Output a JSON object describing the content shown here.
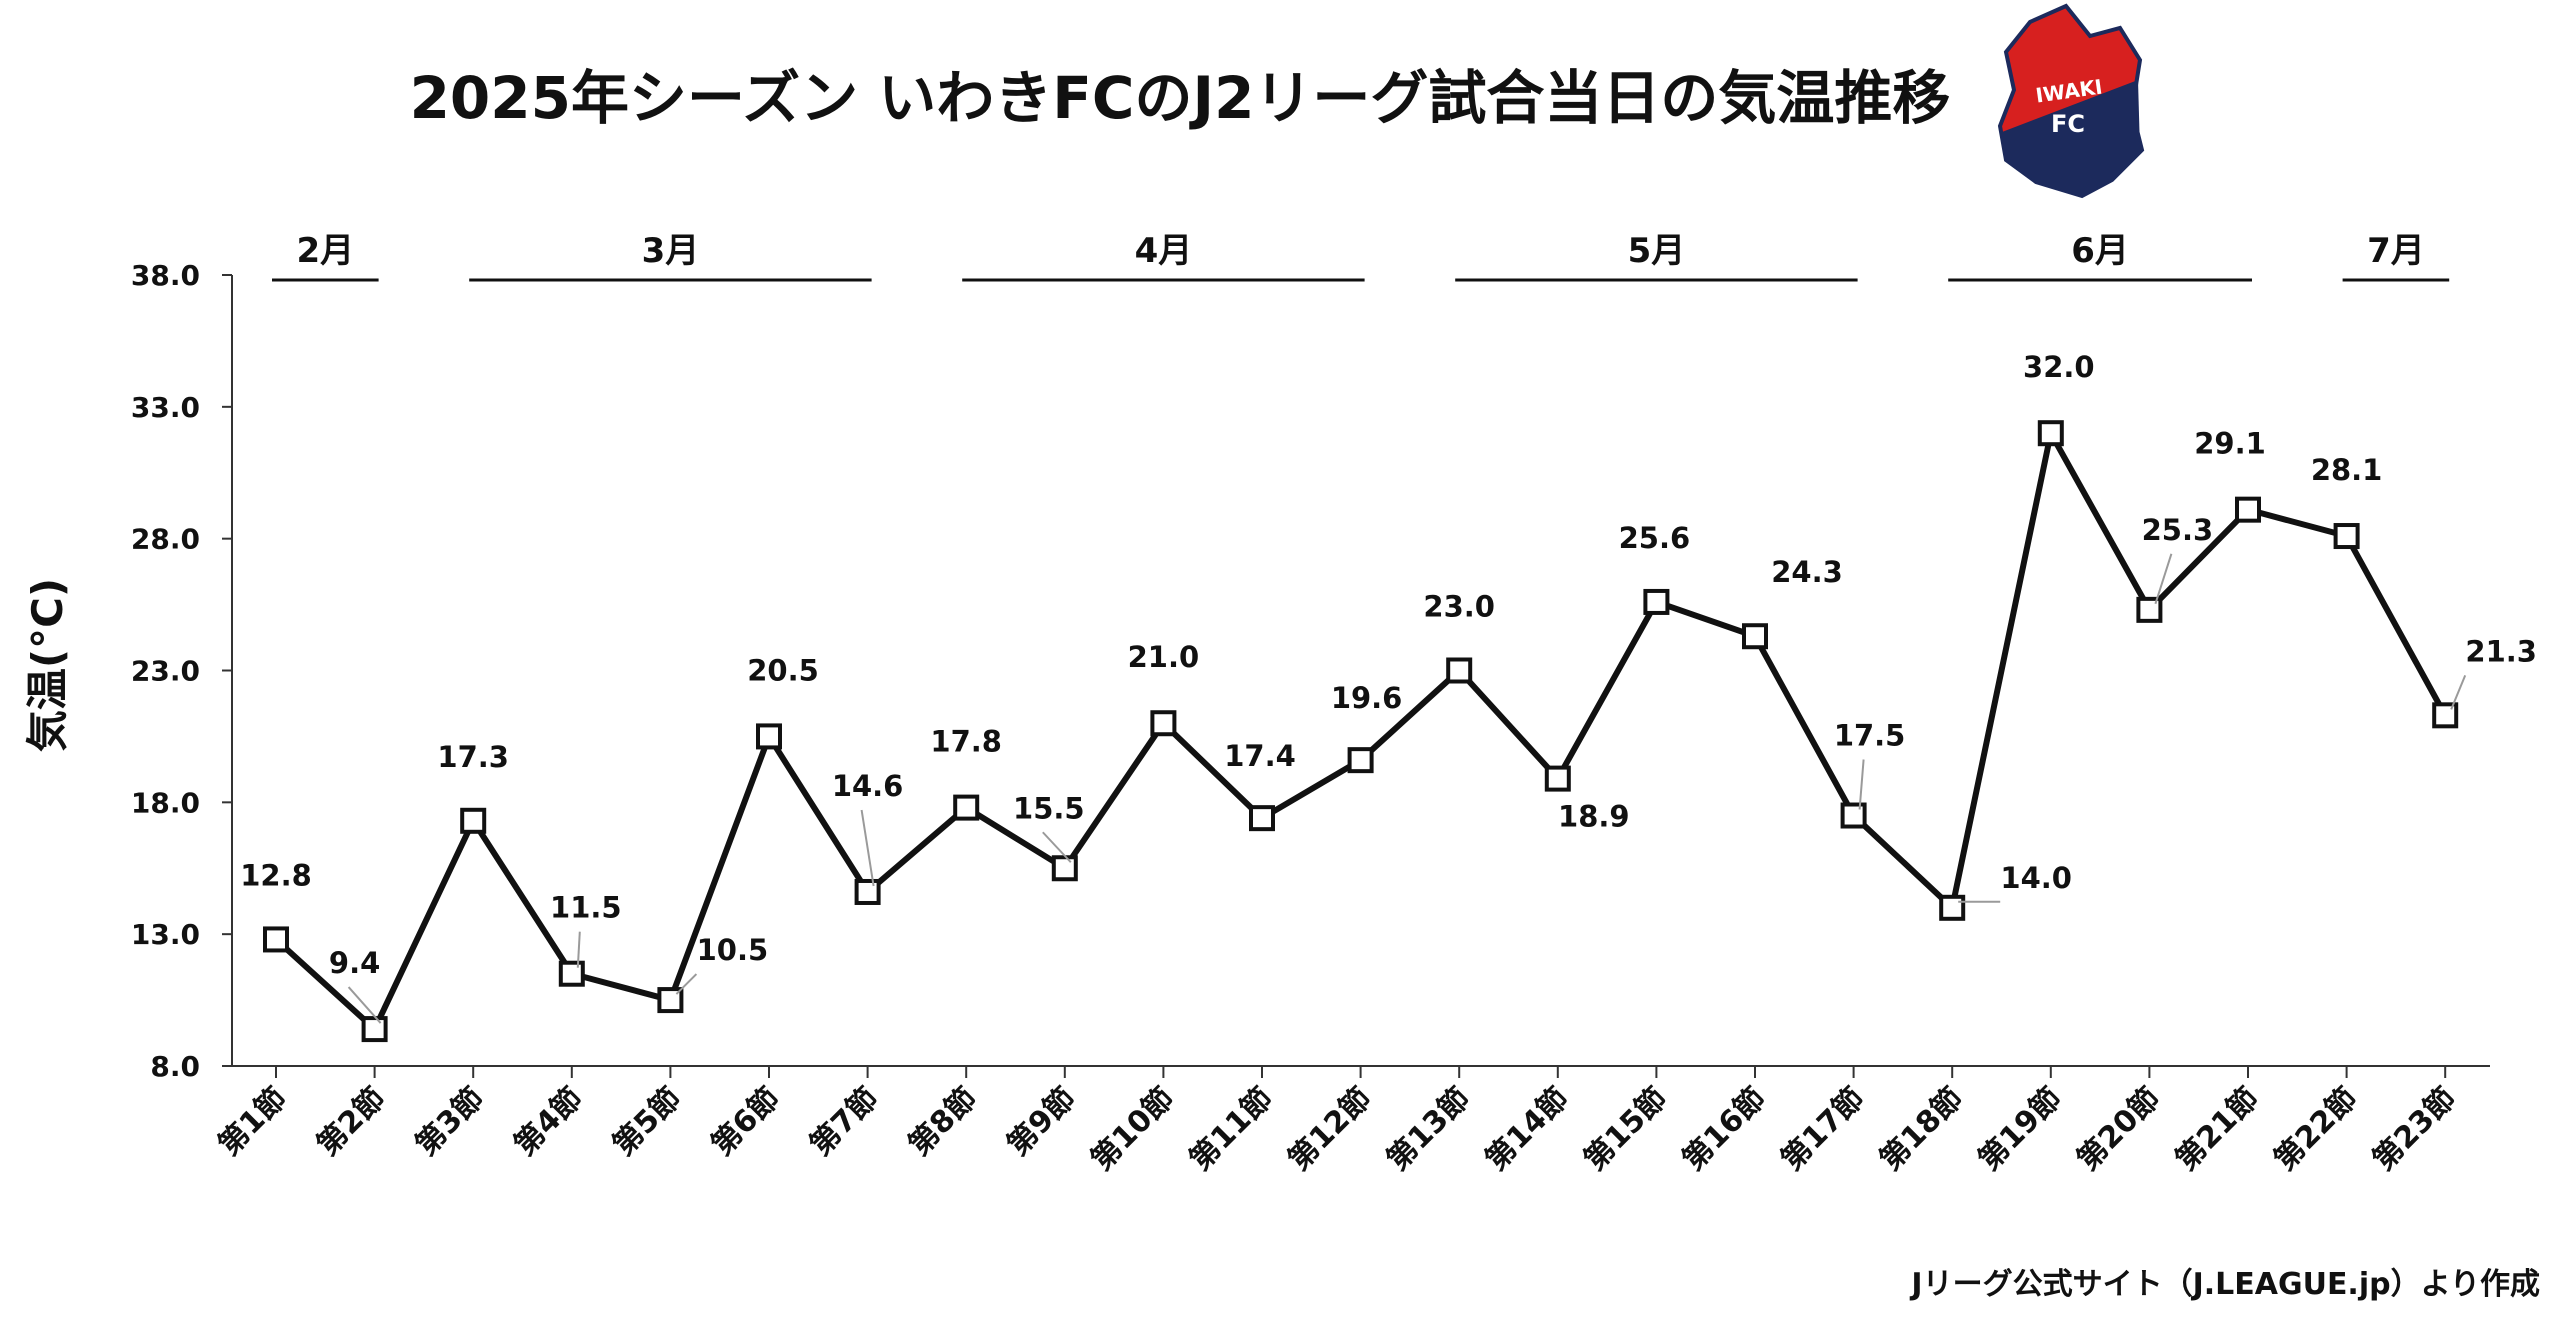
{
  "chart_data": {
    "type": "line",
    "title": "2025年シーズン いわきFCのJ2リーグ試合当日の気温推移",
    "ylabel": "気温(°C)",
    "xlabel": "",
    "ylim": [
      8.0,
      38.0
    ],
    "yticks": [
      "8.0",
      "13.0",
      "18.0",
      "23.0",
      "28.0",
      "33.0",
      "38.0"
    ],
    "categories": [
      "第1節",
      "第2節",
      "第3節",
      "第4節",
      "第5節",
      "第6節",
      "第7節",
      "第8節",
      "第9節",
      "第10節",
      "第11節",
      "第12節",
      "第13節",
      "第14節",
      "第15節",
      "第16節",
      "第17節",
      "第18節",
      "第19節",
      "第20節",
      "第21節",
      "第22節",
      "第23節"
    ],
    "values": [
      12.8,
      9.4,
      17.3,
      11.5,
      10.5,
      20.5,
      14.6,
      17.8,
      15.5,
      21.0,
      17.4,
      19.6,
      23.0,
      18.9,
      25.6,
      24.3,
      17.5,
      14.0,
      32.0,
      25.3,
      29.1,
      28.1,
      21.3
    ],
    "value_labels": [
      "12.8",
      "9.4",
      "17.3",
      "11.5",
      "10.5",
      "20.5",
      "14.6",
      "17.8",
      "15.5",
      "21.0",
      "17.4",
      "19.6",
      "23.0",
      "18.9",
      "25.6",
      "24.3",
      "17.5",
      "14.0",
      "32.0",
      "25.3",
      "29.1",
      "28.1",
      "21.3"
    ],
    "months": [
      {
        "label": "2月",
        "start": 0,
        "end": 1
      },
      {
        "label": "3月",
        "start": 2,
        "end": 6
      },
      {
        "label": "4月",
        "start": 7,
        "end": 11
      },
      {
        "label": "5月",
        "start": 12,
        "end": 16
      },
      {
        "label": "6月",
        "start": 17,
        "end": 20
      },
      {
        "label": "7月",
        "start": 21,
        "end": 22
      }
    ],
    "grid": false,
    "legend": "none",
    "line_color": "#111111",
    "marker": "square-hollow",
    "logo": {
      "text_top": "IWAKI",
      "text_bottom": "FC",
      "colors": {
        "red": "#d7201f",
        "navy": "#1c2a5c",
        "white": "#ffffff"
      }
    },
    "source": "Jリーグ公式サイト（J.LEAGUE.jp）より作成"
  }
}
